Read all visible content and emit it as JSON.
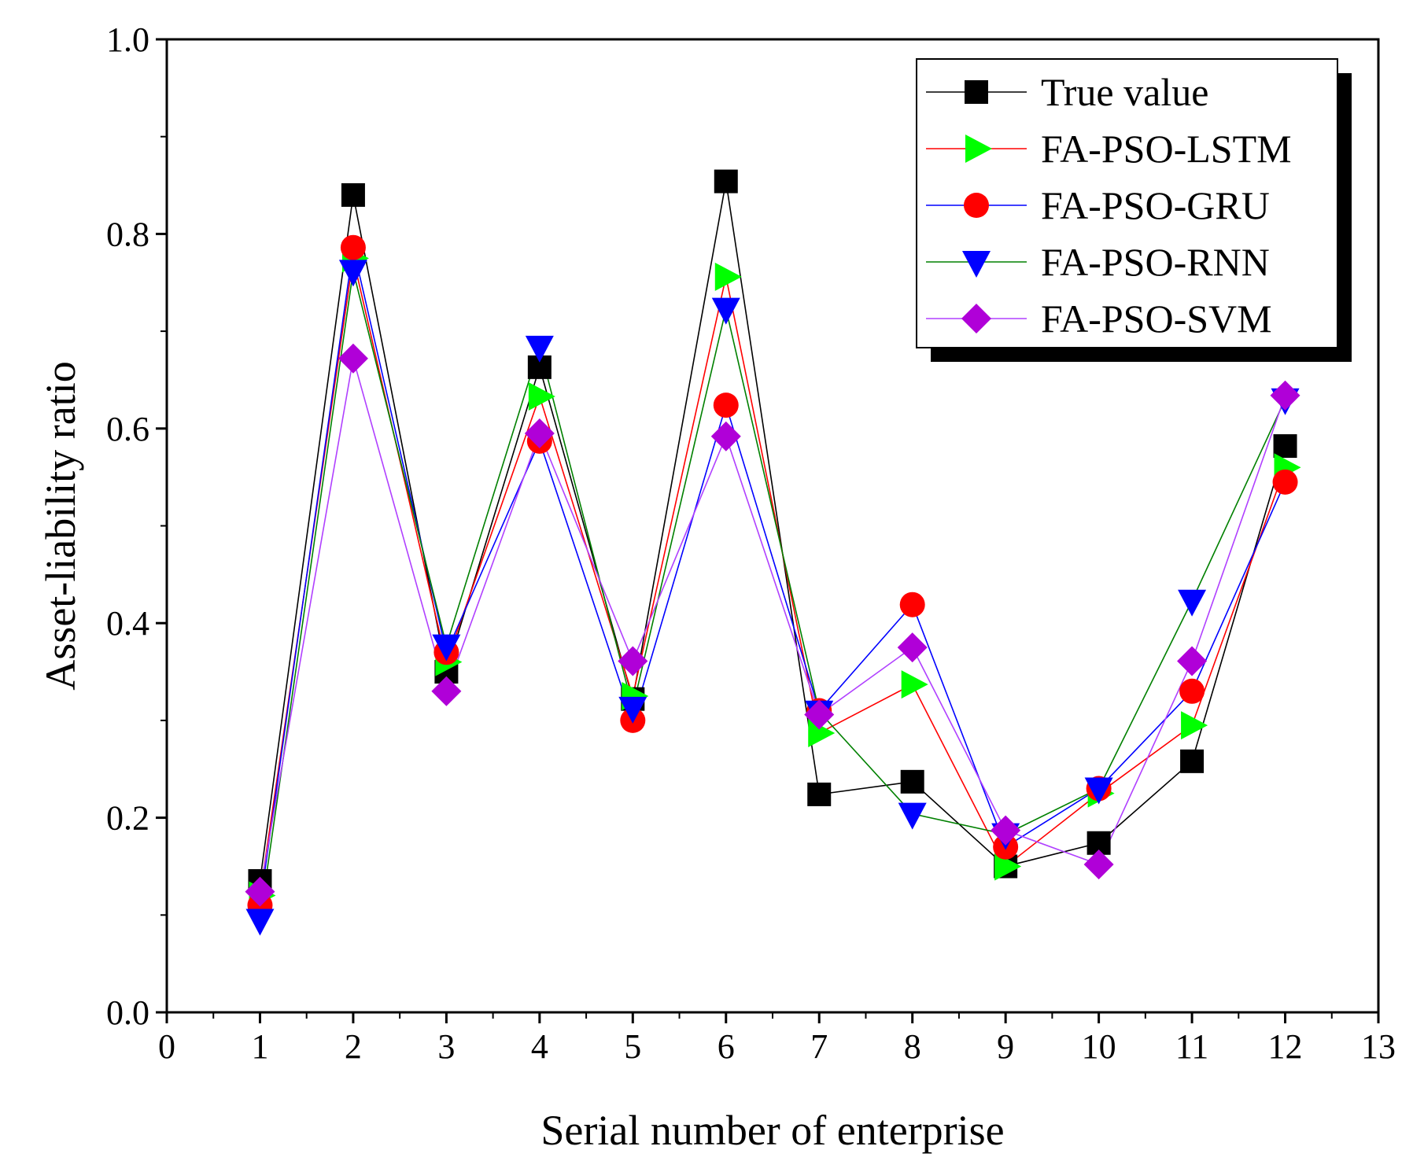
{
  "chart_data": {
    "type": "line",
    "title": "",
    "xlabel": "Serial number of enterprise",
    "ylabel": "Asset-liability ratio",
    "xlim": [
      0,
      13
    ],
    "ylim": [
      0.0,
      1.0
    ],
    "x_ticks": [
      0,
      1,
      2,
      3,
      4,
      5,
      6,
      7,
      8,
      9,
      10,
      11,
      12,
      13
    ],
    "x_tick_labels": [
      "0",
      "1",
      "2",
      "3",
      "4",
      "5",
      "6",
      "7",
      "8",
      "9",
      "10",
      "11",
      "12",
      "13"
    ],
    "y_ticks": [
      0.0,
      0.2,
      0.4,
      0.6,
      0.8,
      1.0
    ],
    "y_tick_labels": [
      "0.0",
      "0.2",
      "0.4",
      "0.6",
      "0.8",
      "1.0"
    ],
    "grid": false,
    "legend_position": "top-right",
    "x": [
      1,
      2,
      3,
      4,
      5,
      6,
      7,
      8,
      9,
      10,
      11,
      12
    ],
    "series": [
      {
        "name": "True value",
        "line_color": "#000000",
        "marker": "square",
        "marker_color": "#000000",
        "values": [
          0.135,
          0.84,
          0.35,
          0.663,
          0.322,
          0.854,
          0.224,
          0.237,
          0.15,
          0.174,
          0.258,
          0.582
        ]
      },
      {
        "name": "FA-PSO-LSTM",
        "line_color": "#ff0000",
        "marker": "triangle-right",
        "marker_color": "#00ff00",
        "values": [
          0.12,
          0.775,
          0.36,
          0.633,
          0.325,
          0.756,
          0.287,
          0.337,
          0.15,
          0.225,
          0.295,
          0.56
        ]
      },
      {
        "name": "FA-PSO-GRU",
        "line_color": "#0000ff",
        "marker": "circle",
        "marker_color": "#ff0000",
        "values": [
          0.11,
          0.786,
          0.37,
          0.587,
          0.3,
          0.624,
          0.31,
          0.419,
          0.17,
          0.23,
          0.33,
          0.545
        ]
      },
      {
        "name": "FA-PSO-RNN",
        "line_color": "#008000",
        "marker": "triangle-down",
        "marker_color": "#0000ff",
        "values": [
          0.095,
          0.762,
          0.377,
          0.684,
          0.313,
          0.723,
          0.309,
          0.204,
          0.183,
          0.23,
          0.423,
          0.63
        ]
      },
      {
        "name": "FA-PSO-SVM",
        "line_color": "#b040ff",
        "marker": "diamond",
        "marker_color": "#b000d8",
        "values": [
          0.124,
          0.672,
          0.33,
          0.595,
          0.361,
          0.592,
          0.306,
          0.375,
          0.187,
          0.152,
          0.361,
          0.634
        ]
      }
    ]
  }
}
